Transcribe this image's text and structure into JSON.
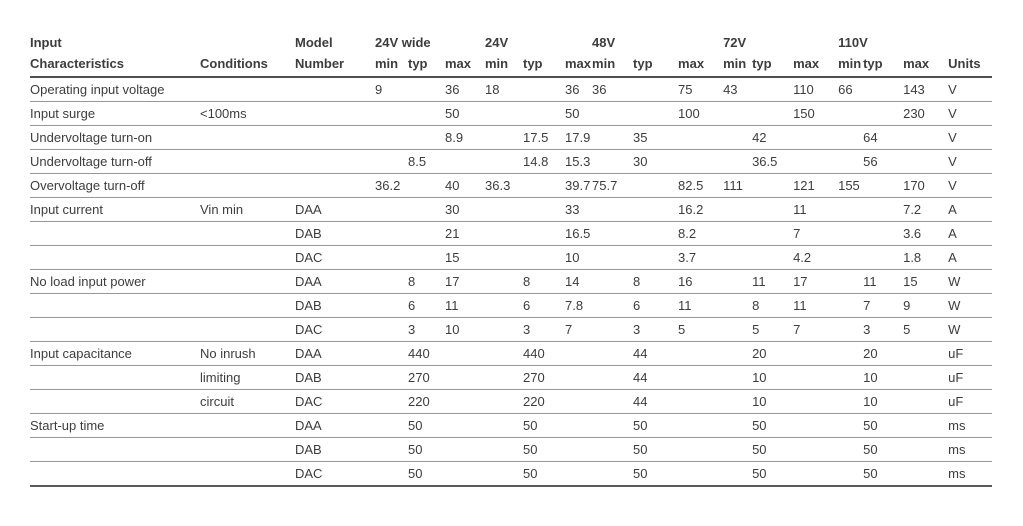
{
  "table": {
    "header": {
      "title_line1": "Input",
      "title_line2": "Characteristics",
      "conditions_label": "Conditions",
      "model_line1": "Model",
      "model_line2": "Number",
      "groups": [
        "24V wide",
        "24V",
        "48V",
        "72V",
        "110V"
      ],
      "sub_labels": [
        "min",
        "typ",
        "max"
      ],
      "units_label": "Units"
    },
    "rows": [
      {
        "characteristic": "Operating input voltage",
        "condition": "",
        "model": "",
        "values": [
          "9",
          "",
          "36",
          "18",
          "",
          "36",
          "36",
          "",
          "75",
          "43",
          "",
          "110",
          "66",
          "",
          "143"
        ],
        "units": "V"
      },
      {
        "characteristic": "Input surge",
        "condition": "<100ms",
        "model": "",
        "values": [
          "",
          "",
          "50",
          "",
          "",
          "50",
          "",
          "",
          "100",
          "",
          "",
          "150",
          "",
          "",
          "230"
        ],
        "units": "V"
      },
      {
        "characteristic": "Undervoltage turn-on",
        "condition": "",
        "model": "",
        "values": [
          "",
          "",
          "8.9",
          "",
          "17.5",
          "17.9",
          "",
          "35",
          "",
          "",
          "42",
          "",
          "",
          "64",
          ""
        ],
        "units": "V"
      },
      {
        "characteristic": "Undervoltage turn-off",
        "condition": "",
        "model": "",
        "values": [
          "",
          "8.5",
          "",
          "",
          "14.8",
          "15.3",
          "",
          "30",
          "",
          "",
          "36.5",
          "",
          "",
          "56",
          ""
        ],
        "units": "V"
      },
      {
        "characteristic": "Overvoltage turn-off",
        "condition": "",
        "model": "",
        "values": [
          "36.2",
          "",
          "40",
          "36.3",
          "",
          "39.7",
          "75.7",
          "",
          "82.5",
          "111",
          "",
          "121",
          "155",
          "",
          "170"
        ],
        "units": "V"
      },
      {
        "characteristic": "Input current",
        "condition": "Vin min",
        "model": "DAA",
        "values": [
          "",
          "",
          "30",
          "",
          "",
          "33",
          "",
          "",
          "16.2",
          "",
          "",
          "11",
          "",
          "",
          "7.2"
        ],
        "units": "A"
      },
      {
        "characteristic": "",
        "condition": "",
        "model": "DAB",
        "values": [
          "",
          "",
          "21",
          "",
          "",
          "16.5",
          "",
          "",
          "8.2",
          "",
          "",
          "7",
          "",
          "",
          "3.6"
        ],
        "units": "A"
      },
      {
        "characteristic": "",
        "condition": "",
        "model": "DAC",
        "values": [
          "",
          "",
          "15",
          "",
          "",
          "10",
          "",
          "",
          "3.7",
          "",
          "",
          "4.2",
          "",
          "",
          "1.8"
        ],
        "units": "A"
      },
      {
        "characteristic": "No load input power",
        "condition": "",
        "model": "DAA",
        "values": [
          "",
          "8",
          "17",
          "",
          "8",
          "14",
          "",
          "8",
          "16",
          "",
          "11",
          "17",
          "",
          "11",
          "15"
        ],
        "units": "W"
      },
      {
        "characteristic": "",
        "condition": "",
        "model": "DAB",
        "values": [
          "",
          "6",
          "11",
          "",
          "6",
          "7.8",
          "",
          "6",
          "11",
          "",
          "8",
          "11",
          "",
          "7",
          "9"
        ],
        "units": "W"
      },
      {
        "characteristic": "",
        "condition": "",
        "model": "DAC",
        "values": [
          "",
          "3",
          "10",
          "",
          "3",
          "7",
          "",
          "3",
          "5",
          "",
          "5",
          "7",
          "",
          "3",
          "5"
        ],
        "units": "W"
      },
      {
        "characteristic": "Input capacitance",
        "condition": "No inrush",
        "model": "DAA",
        "values": [
          "",
          "440",
          "",
          "",
          "440",
          "",
          "",
          "44",
          "",
          "",
          "20",
          "",
          "",
          "20",
          ""
        ],
        "units": "uF"
      },
      {
        "characteristic": "",
        "condition": "limiting",
        "model": "DAB",
        "values": [
          "",
          "270",
          "",
          "",
          "270",
          "",
          "",
          "44",
          "",
          "",
          "10",
          "",
          "",
          "10",
          ""
        ],
        "units": "uF"
      },
      {
        "characteristic": "",
        "condition": "circuit",
        "model": "DAC",
        "values": [
          "",
          "220",
          "",
          "",
          "220",
          "",
          "",
          "44",
          "",
          "",
          "10",
          "",
          "",
          "10",
          ""
        ],
        "units": "uF"
      },
      {
        "characteristic": "Start-up time",
        "condition": "",
        "model": "DAA",
        "values": [
          "",
          "50",
          "",
          "",
          "50",
          "",
          "",
          "50",
          "",
          "",
          "50",
          "",
          "",
          "50",
          ""
        ],
        "units": "ms"
      },
      {
        "characteristic": "",
        "condition": "",
        "model": "DAB",
        "values": [
          "",
          "50",
          "",
          "",
          "50",
          "",
          "",
          "50",
          "",
          "",
          "50",
          "",
          "",
          "50",
          ""
        ],
        "units": "ms"
      },
      {
        "characteristic": "",
        "condition": "",
        "model": "DAC",
        "values": [
          "",
          "50",
          "",
          "",
          "50",
          "",
          "",
          "50",
          "",
          "",
          "50",
          "",
          "",
          "50",
          ""
        ],
        "units": "ms"
      }
    ]
  },
  "colors": {
    "text": "#3d3d3d",
    "row_rule": "#979797",
    "header_rule": "#4f4f4f"
  }
}
